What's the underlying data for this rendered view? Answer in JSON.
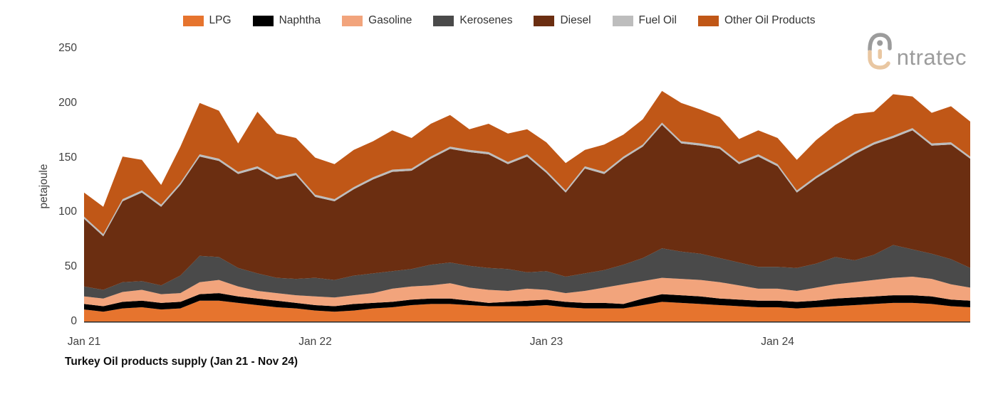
{
  "title": "Turkey Oil products supply (Jan 21 - Nov 24)",
  "logo": {
    "brand": "intratec",
    "text": "ntratec"
  },
  "y_axis": {
    "title": "petajoule"
  },
  "x_axis": {
    "ticks": [
      {
        "label": "Jan 21",
        "month_index": 0
      },
      {
        "label": "Jan 22",
        "month_index": 12
      },
      {
        "label": "Jan 23",
        "month_index": 24
      },
      {
        "label": "Jan 24",
        "month_index": 36
      }
    ]
  },
  "chart_data": {
    "type": "area",
    "stacked": true,
    "title": "Turkey Oil products supply (Jan 21 - Nov 24)",
    "xlabel": "",
    "ylabel": "petajoule",
    "unit": "petajoule",
    "ylim": [
      0,
      250
    ],
    "y_ticks": [
      0,
      50,
      100,
      150,
      200,
      250
    ],
    "x_tick_labels": [
      "Jan 21",
      "Jan 22",
      "Jan 23",
      "Jan 24"
    ],
    "legend_position": "top",
    "grid": false,
    "categories": [
      "Jan 21",
      "Feb 21",
      "Mar 21",
      "Apr 21",
      "May 21",
      "Jun 21",
      "Jul 21",
      "Aug 21",
      "Sep 21",
      "Oct 21",
      "Nov 21",
      "Dec 21",
      "Jan 22",
      "Feb 22",
      "Mar 22",
      "Apr 22",
      "May 22",
      "Jun 22",
      "Jul 22",
      "Aug 22",
      "Sep 22",
      "Oct 22",
      "Nov 22",
      "Dec 22",
      "Jan 23",
      "Feb 23",
      "Mar 23",
      "Apr 23",
      "May 23",
      "Jun 23",
      "Jul 23",
      "Aug 23",
      "Sep 23",
      "Oct 23",
      "Nov 23",
      "Dec 23",
      "Jan 24",
      "Feb 24",
      "Mar 24",
      "Apr 24",
      "May 24",
      "Jun 24",
      "Jul 24",
      "Aug 24",
      "Sep 24",
      "Oct 24",
      "Nov 24"
    ],
    "series": [
      {
        "name": "LPG",
        "color": "#E6742E",
        "values": [
          11,
          9,
          12,
          13,
          11,
          12,
          19,
          19,
          17,
          15,
          13,
          12,
          10,
          9,
          10,
          12,
          13,
          15,
          16,
          16,
          15,
          14,
          14,
          14,
          15,
          13,
          12,
          12,
          12,
          15,
          18,
          17,
          16,
          15,
          14,
          13,
          13,
          12,
          13,
          14,
          15,
          16,
          17,
          17,
          16,
          14,
          13
        ]
      },
      {
        "name": "Naphtha",
        "color": "#000000",
        "values": [
          5,
          5,
          6,
          6,
          6,
          6,
          6,
          7,
          6,
          6,
          6,
          5,
          5,
          5,
          6,
          5,
          5,
          5,
          5,
          5,
          4,
          3,
          4,
          5,
          5,
          5,
          5,
          5,
          4,
          6,
          7,
          7,
          7,
          6,
          6,
          6,
          6,
          6,
          6,
          7,
          7,
          7,
          7,
          7,
          7,
          6,
          6
        ]
      },
      {
        "name": "Gasoline",
        "color": "#F2A47C",
        "values": [
          7,
          7,
          9,
          10,
          8,
          8,
          11,
          12,
          9,
          7,
          7,
          7,
          8,
          8,
          8,
          9,
          12,
          12,
          12,
          14,
          12,
          12,
          10,
          11,
          9,
          8,
          11,
          14,
          18,
          16,
          15,
          15,
          15,
          15,
          13,
          11,
          11,
          10,
          12,
          13,
          14,
          15,
          16,
          17,
          16,
          14,
          12
        ]
      },
      {
        "name": "Kerosenes",
        "color": "#4A4A4A",
        "values": [
          9,
          8,
          9,
          8,
          8,
          16,
          24,
          21,
          17,
          16,
          14,
          15,
          17,
          16,
          18,
          18,
          16,
          16,
          19,
          19,
          20,
          20,
          20,
          15,
          17,
          15,
          16,
          16,
          18,
          21,
          27,
          25,
          24,
          22,
          21,
          20,
          20,
          21,
          22,
          25,
          20,
          23,
          30,
          25,
          23,
          23,
          18
        ]
      },
      {
        "name": "Diesel",
        "color": "#6B2E11",
        "values": [
          62,
          49,
          74,
          81,
          72,
          83,
          91,
          88,
          86,
          96,
          90,
          95,
          74,
          72,
          79,
          86,
          91,
          90,
          97,
          104,
          104,
          104,
          96,
          106,
          90,
          77,
          96,
          88,
          97,
          102,
          113,
          99,
          99,
          100,
          90,
          101,
          92,
          69,
          78,
          83,
          97,
          101,
          98,
          109,
          99,
          105,
          100
        ]
      },
      {
        "name": "Fuel Oil",
        "color": "#BDBDBD",
        "values": [
          2,
          2,
          2,
          2,
          2,
          2,
          2,
          2,
          2,
          2,
          2,
          2,
          2,
          2,
          2,
          2,
          2,
          2,
          2,
          2,
          2,
          2,
          2,
          2,
          2,
          2,
          2,
          2,
          2,
          2,
          2,
          2,
          2,
          2,
          2,
          2,
          2,
          2,
          2,
          2,
          2,
          2,
          2,
          2,
          2,
          2,
          2
        ]
      },
      {
        "name": "Other Oil Products",
        "color": "#C05717",
        "values": [
          22,
          25,
          39,
          28,
          18,
          33,
          47,
          44,
          26,
          50,
          40,
          32,
          34,
          32,
          34,
          33,
          36,
          28,
          30,
          29,
          19,
          26,
          26,
          23,
          26,
          25,
          15,
          25,
          20,
          23,
          29,
          35,
          31,
          27,
          21,
          22,
          24,
          28,
          33,
          36,
          35,
          28,
          38,
          29,
          28,
          33,
          32
        ]
      }
    ]
  }
}
